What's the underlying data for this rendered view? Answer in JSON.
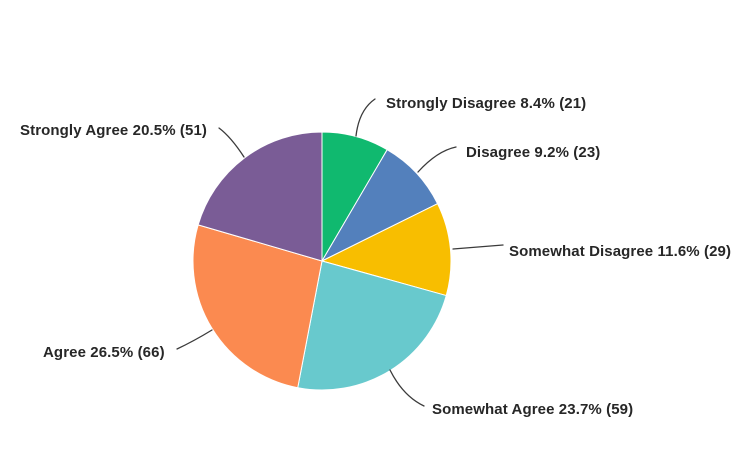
{
  "chart_data": {
    "type": "pie",
    "title": "",
    "legend_position": "none",
    "labels_style": "outside-callout",
    "start_angle_deg": 0,
    "direction": "clockwise",
    "label_format": "{label} {percent}% ({count})",
    "slices": [
      {
        "label": "Strongly Disagree",
        "percent": "8.4",
        "count": 21,
        "color": "#10B96F"
      },
      {
        "label": "Disagree",
        "percent": "9.2",
        "count": 23,
        "color": "#5380BC"
      },
      {
        "label": "Somewhat Disagree",
        "percent": "11.6",
        "count": 29,
        "color": "#F8BE00"
      },
      {
        "label": "Somewhat Agree",
        "percent": "23.7",
        "count": 59,
        "color": "#68C9CD"
      },
      {
        "label": "Agree",
        "percent": "26.5",
        "count": 66,
        "color": "#FB8A50"
      },
      {
        "label": "Strongly Agree",
        "percent": "20.5",
        "count": 51,
        "color": "#7A5C96"
      }
    ],
    "leader_line_color": "#3b3b3b",
    "label_text_color": "#272727",
    "background_color": "#ffffff"
  }
}
